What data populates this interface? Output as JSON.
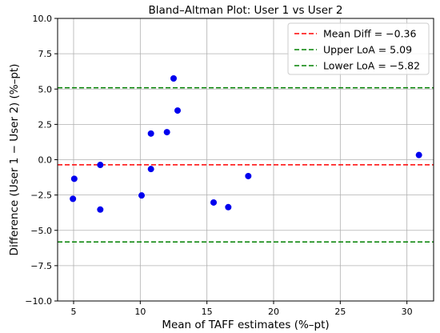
{
  "chart_data": {
    "type": "scatter",
    "title": "Bland–Altman Plot: User 1 vs User 2",
    "xlabel": "Mean of TAFF estimates (%–pt)",
    "ylabel": "Difference (User 1 − User 2) (%–pt)",
    "xlim": [
      3.8,
      32.0
    ],
    "ylim": [
      -10.0,
      10.0
    ],
    "xticks": [
      5,
      10,
      15,
      20,
      25,
      30
    ],
    "xtick_labels": [
      "5",
      "10",
      "15",
      "20",
      "25",
      "30"
    ],
    "yticks": [
      -10.0,
      -7.5,
      -5.0,
      -2.5,
      0.0,
      2.5,
      5.0,
      7.5,
      10.0
    ],
    "ytick_labels": [
      "−10.0",
      "−7.5",
      "−5.0",
      "−2.5",
      "0.0",
      "2.5",
      "5.0",
      "7.5",
      "10.0"
    ],
    "grid": true,
    "legend_position": "top-right",
    "point_color": "#0000ee",
    "points": [
      {
        "x": 4.95,
        "y": -2.77
      },
      {
        "x": 5.05,
        "y": -1.35
      },
      {
        "x": 7.0,
        "y": -0.37
      },
      {
        "x": 7.0,
        "y": -3.53
      },
      {
        "x": 10.1,
        "y": -2.53
      },
      {
        "x": 10.8,
        "y": 1.85
      },
      {
        "x": 10.8,
        "y": -0.66
      },
      {
        "x": 12.0,
        "y": 1.95
      },
      {
        "x": 12.5,
        "y": 5.75
      },
      {
        "x": 12.8,
        "y": 3.48
      },
      {
        "x": 15.5,
        "y": -3.03
      },
      {
        "x": 16.6,
        "y": -3.36
      },
      {
        "x": 18.1,
        "y": -1.16
      },
      {
        "x": 30.9,
        "y": 0.33
      }
    ],
    "reference_lines": [
      {
        "name": "Mean Diff = −0.36",
        "y": -0.36,
        "color": "#ff0000"
      },
      {
        "name": "Upper LoA = 5.09",
        "y": 5.09,
        "color": "#008000"
      },
      {
        "name": "Lower LoA = −5.82",
        "y": -5.82,
        "color": "#008000"
      }
    ]
  }
}
